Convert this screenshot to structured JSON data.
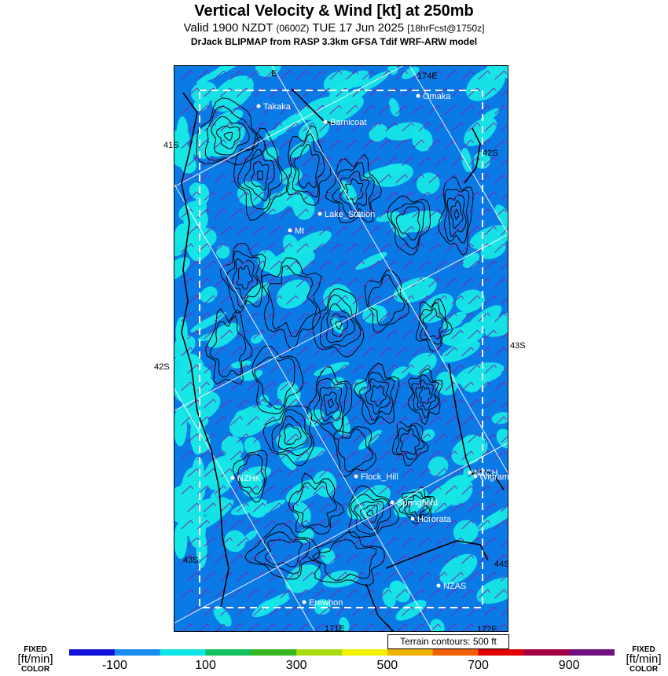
{
  "header": {
    "title": "Vertical Velocity & Wind [kt] at 250mb",
    "valid_main": "Valid 1900 NZDT",
    "valid_utc": "(0600Z)",
    "valid_date": "TUE 17 Jun 2025",
    "forecast": "[18hrFcst@1750z]",
    "model": "DrJack BLIPMAP from RASP 3.3km GFSA Tdif WRF-ARW model"
  },
  "map": {
    "places": [
      {
        "name": "Takaka"
      },
      {
        "name": "Omaka"
      },
      {
        "name": "Barnicoat"
      },
      {
        "name": "Lake_Station"
      },
      {
        "name": "Mt"
      },
      {
        "name": "NZHK"
      },
      {
        "name": "Flock_Hill"
      },
      {
        "name": "NZCH"
      },
      {
        "name": "Wigram"
      },
      {
        "name": "Springfield"
      },
      {
        "name": "Hororata"
      },
      {
        "name": "NZAS"
      },
      {
        "name": "Erewhon"
      }
    ],
    "grid_labels": {
      "lon_top_left": "E",
      "lon_top_right": "174E",
      "lon_bottom_left": "171E",
      "lon_bottom_right": "172E",
      "lat_41s": "41S",
      "lat_42s_right": "42S",
      "lat_42s_left": "42S",
      "lat_43s_right": "43S",
      "lat_43s_left": "43S",
      "lat_44s": "44S"
    },
    "colors": {
      "low": "#0a7ae6",
      "mid": "#16e6e6",
      "contour": "#000000",
      "wind_barb": "#7a2ab0",
      "outline": "#ffffff"
    }
  },
  "terrain": "Terrain contours: 500 ft",
  "legend": {
    "fixed": "FIXED",
    "units": "[ft/min]",
    "color": "COLOR",
    "ticks": [
      "-100",
      "100",
      "300",
      "500",
      "700",
      "900"
    ],
    "colors": [
      "#1010d8",
      "#1a8cf0",
      "#10e6e6",
      "#14c060",
      "#38b820",
      "#a8dc10",
      "#f0f000",
      "#f0b000",
      "#f06000",
      "#e00000",
      "#a00040",
      "#701080"
    ]
  }
}
